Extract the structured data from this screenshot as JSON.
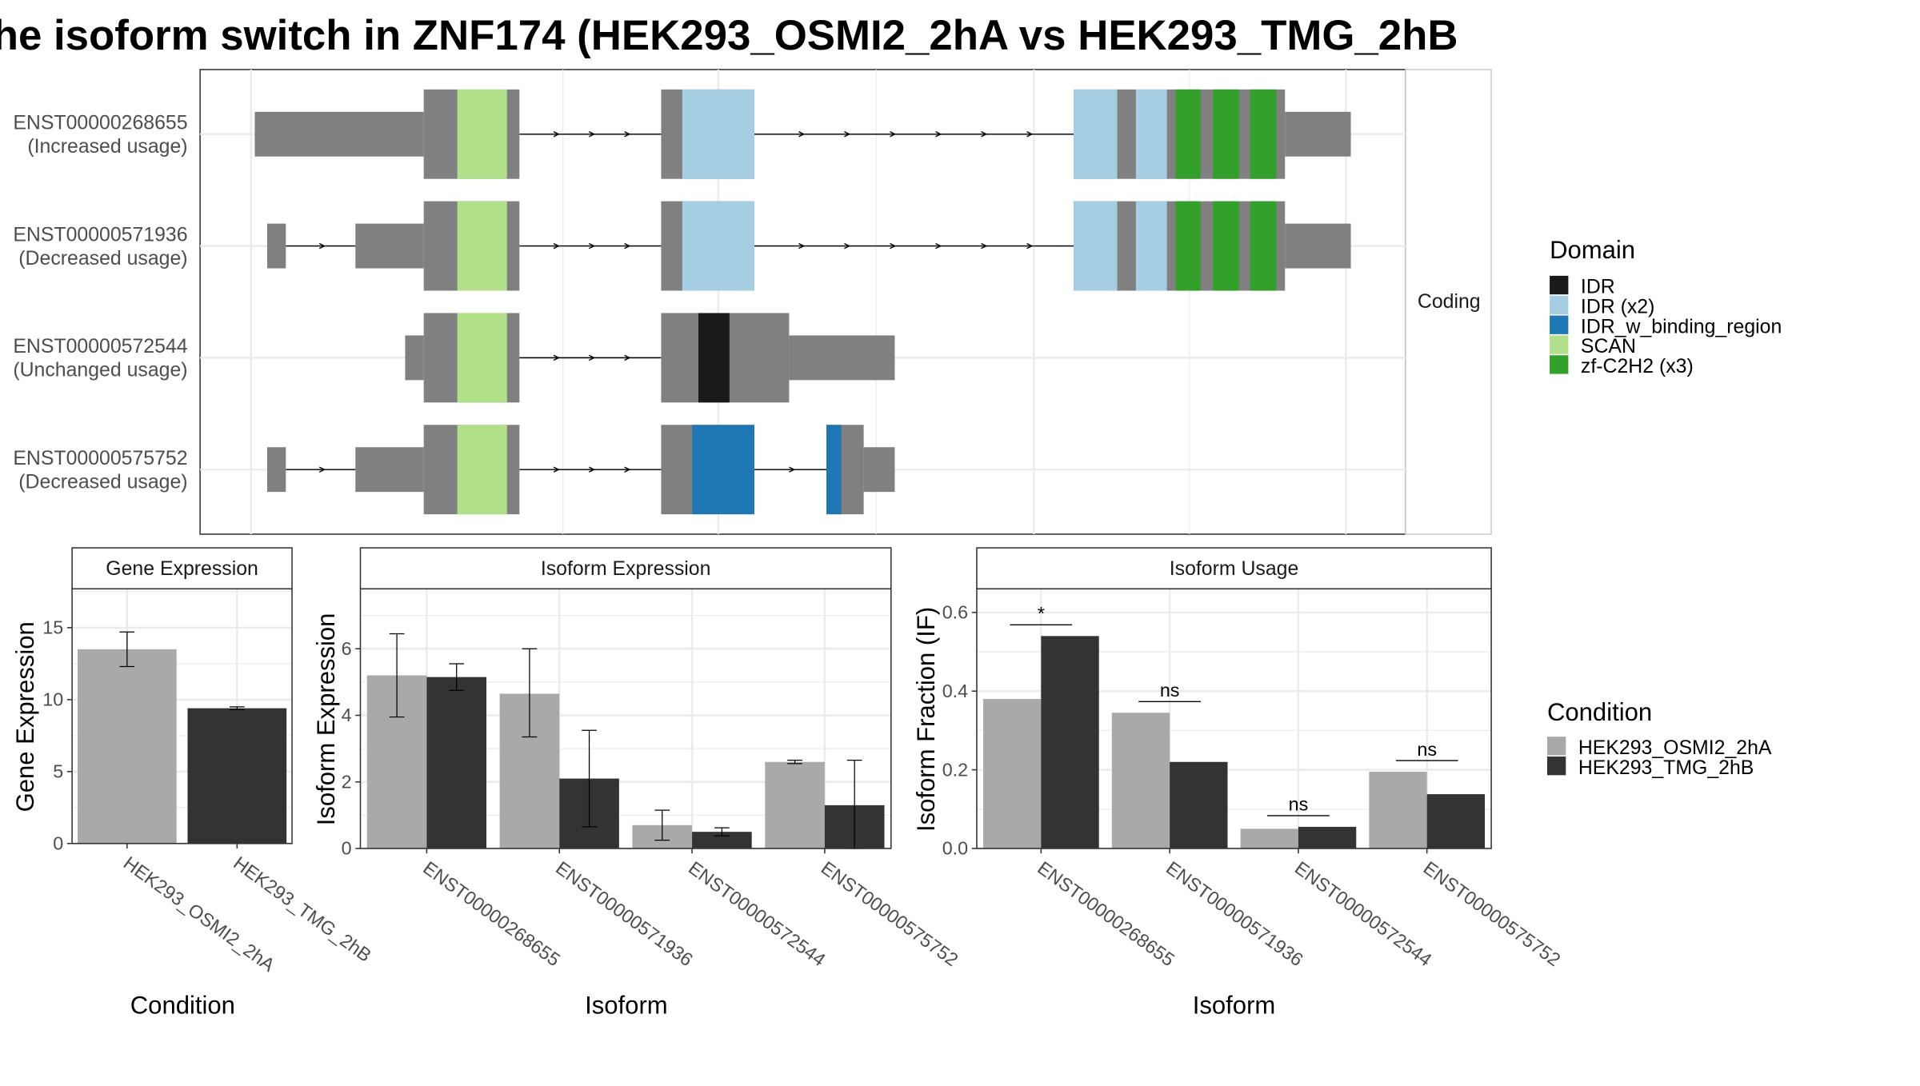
{
  "title": "he isoform switch in ZNF174 (HEK293_OSMI2_2hA vs HEK293_TMG_2hB",
  "colors": {
    "utr": "#808080",
    "cds": "#808080",
    "cond1": "#a9a9a9",
    "cond2": "#333333",
    "IDR": "#1a1a1a",
    "IDR (x2)": "#a6cee3",
    "IDR_w_binding_region": "#1f78b4",
    "SCAN": "#b2df8a",
    "zf-C2H2 (x3)": "#33a02c"
  },
  "structure": {
    "facet_label": "Coding",
    "isoforms": [
      {
        "id": "ENST00000268655",
        "usage": "(Increased usage)"
      },
      {
        "id": "ENST00000571936",
        "usage": "(Decreased usage)"
      },
      {
        "id": "ENST00000572544",
        "usage": "(Unchanged usage)"
      },
      {
        "id": "ENST00000575752",
        "usage": "(Decreased usage)"
      }
    ]
  },
  "domain_legend": {
    "title": "Domain",
    "items": [
      "IDR",
      "IDR (x2)",
      "IDR_w_binding_region",
      "SCAN",
      "zf-C2H2 (x3)"
    ]
  },
  "condition_legend": {
    "title": "Condition",
    "items": [
      "HEK293_OSMI2_2hA",
      "HEK293_TMG_2hB"
    ]
  },
  "chart_data": [
    {
      "type": "bar",
      "title": "Gene Expression",
      "xlabel": "Condition",
      "ylabel": "Gene Expression",
      "ylim": [
        0,
        17.7
      ],
      "yticks": [
        0,
        5,
        10,
        15
      ],
      "categories": [
        "HEK293_OSMI2_2hA",
        "HEK293_TMG_2hB"
      ],
      "values": [
        13.5,
        9.4
      ],
      "errors": [
        [
          12.3,
          14.7
        ],
        [
          9.3,
          9.5
        ]
      ]
    },
    {
      "type": "bar",
      "title": "Isoform Expression",
      "xlabel": "Isoform",
      "ylabel": "Isoform Expression",
      "ylim": [
        0,
        7.8
      ],
      "yticks": [
        0,
        2,
        4,
        6
      ],
      "categories": [
        "ENST00000268655",
        "ENST00000571936",
        "ENST00000572544",
        "ENST00000575752"
      ],
      "series": [
        {
          "name": "HEK293_OSMI2_2hA",
          "values": [
            5.2,
            4.65,
            0.7,
            2.6
          ],
          "errors": [
            [
              3.95,
              6.45
            ],
            [
              3.35,
              6.0
            ],
            [
              0.25,
              1.15
            ],
            [
              2.55,
              2.65
            ]
          ]
        },
        {
          "name": "HEK293_TMG_2hB",
          "values": [
            5.15,
            2.1,
            0.5,
            1.3
          ],
          "errors": [
            [
              4.75,
              5.55
            ],
            [
              0.65,
              3.55
            ],
            [
              0.38,
              0.62
            ],
            [
              0.0,
              2.65
            ]
          ]
        }
      ]
    },
    {
      "type": "bar",
      "title": "Isoform Usage",
      "xlabel": "Isoform",
      "ylabel": "Isoform Fraction (IF)",
      "ylim": [
        0,
        0.66
      ],
      "yticks": [
        0.0,
        0.2,
        0.4,
        0.6
      ],
      "ytick_labels": [
        "0.0",
        "0.2",
        "0.4",
        "0.6"
      ],
      "categories": [
        "ENST00000268655",
        "ENST00000571936",
        "ENST00000572544",
        "ENST00000575752"
      ],
      "series": [
        {
          "name": "HEK293_OSMI2_2hA",
          "values": [
            0.38,
            0.345,
            0.05,
            0.195
          ]
        },
        {
          "name": "HEK293_TMG_2hB",
          "values": [
            0.54,
            0.22,
            0.055,
            0.138
          ]
        }
      ],
      "significance": [
        "*",
        "ns",
        "ns",
        "ns"
      ]
    }
  ]
}
